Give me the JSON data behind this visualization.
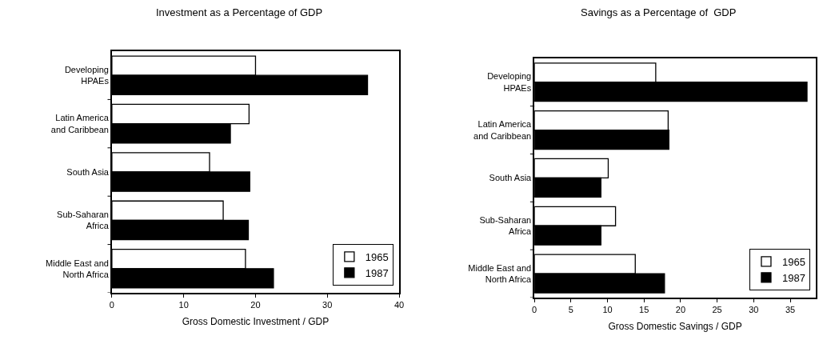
{
  "chart_data": [
    {
      "type": "bar",
      "orientation": "horizontal",
      "title": "Investment as a Percentage of GDP",
      "xlabel": "Gross Domestic Investment / GDP",
      "categories": [
        "Developing\nHPAEs",
        "Latin America\nand Caribbean",
        "South Asia",
        "Sub-Saharan\nAfrica",
        "Middle East and\nNorth Africa"
      ],
      "series": [
        {
          "name": "1965",
          "color": "#ffffff",
          "values": [
            20.0,
            19.1,
            13.6,
            15.5,
            18.6
          ]
        },
        {
          "name": "1987",
          "color": "#000000",
          "values": [
            35.6,
            16.5,
            19.2,
            19.0,
            22.5
          ]
        }
      ],
      "xlim": [
        0,
        40
      ],
      "xticks": [
        0,
        10,
        20,
        30,
        40
      ],
      "legend": "bottom right"
    },
    {
      "type": "bar",
      "orientation": "horizontal",
      "title": "Savings as a Percentage of  GDP",
      "xlabel": "Gross Domestic Savings / GDP",
      "categories": [
        "Developing\nHPAEs",
        "Latin America\nand Caribbean",
        "South Asia",
        "Sub-Saharan\nAfrica",
        "Middle East and\nNorth Africa"
      ],
      "series": [
        {
          "name": "1965",
          "color": "#ffffff",
          "values": [
            16.6,
            18.3,
            10.1,
            11.1,
            13.8
          ]
        },
        {
          "name": "1987",
          "color": "#000000",
          "values": [
            37.3,
            18.4,
            9.1,
            9.1,
            17.8
          ]
        }
      ],
      "xlim": [
        0,
        38.5
      ],
      "xticks": [
        0,
        5,
        10,
        15,
        20,
        25,
        30,
        35
      ],
      "legend": "bottom right"
    }
  ]
}
